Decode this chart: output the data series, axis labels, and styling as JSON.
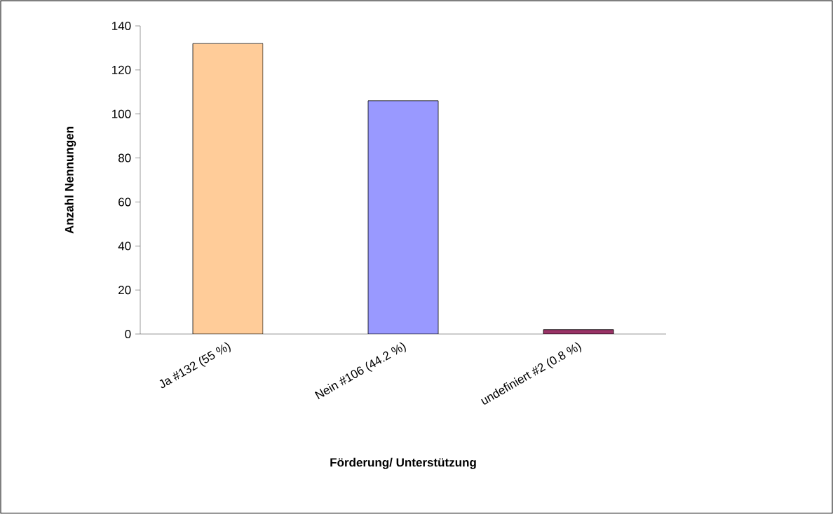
{
  "chart_data": {
    "type": "bar",
    "xlabel": "Förderung/ Unterstützung",
    "ylabel": "Anzahl Nennungen",
    "categories": [
      "Ja #132 (55 %)",
      "Nein #106 (44.2 %)",
      "undefiniert #2 (0.8 %)"
    ],
    "values": [
      132,
      106,
      2
    ],
    "colors": [
      "#ffcc99",
      "#9999ff",
      "#993366"
    ],
    "ylim": [
      0,
      140
    ],
    "yticks": [
      0,
      20,
      40,
      60,
      80,
      100,
      120,
      140
    ],
    "grid": false
  }
}
